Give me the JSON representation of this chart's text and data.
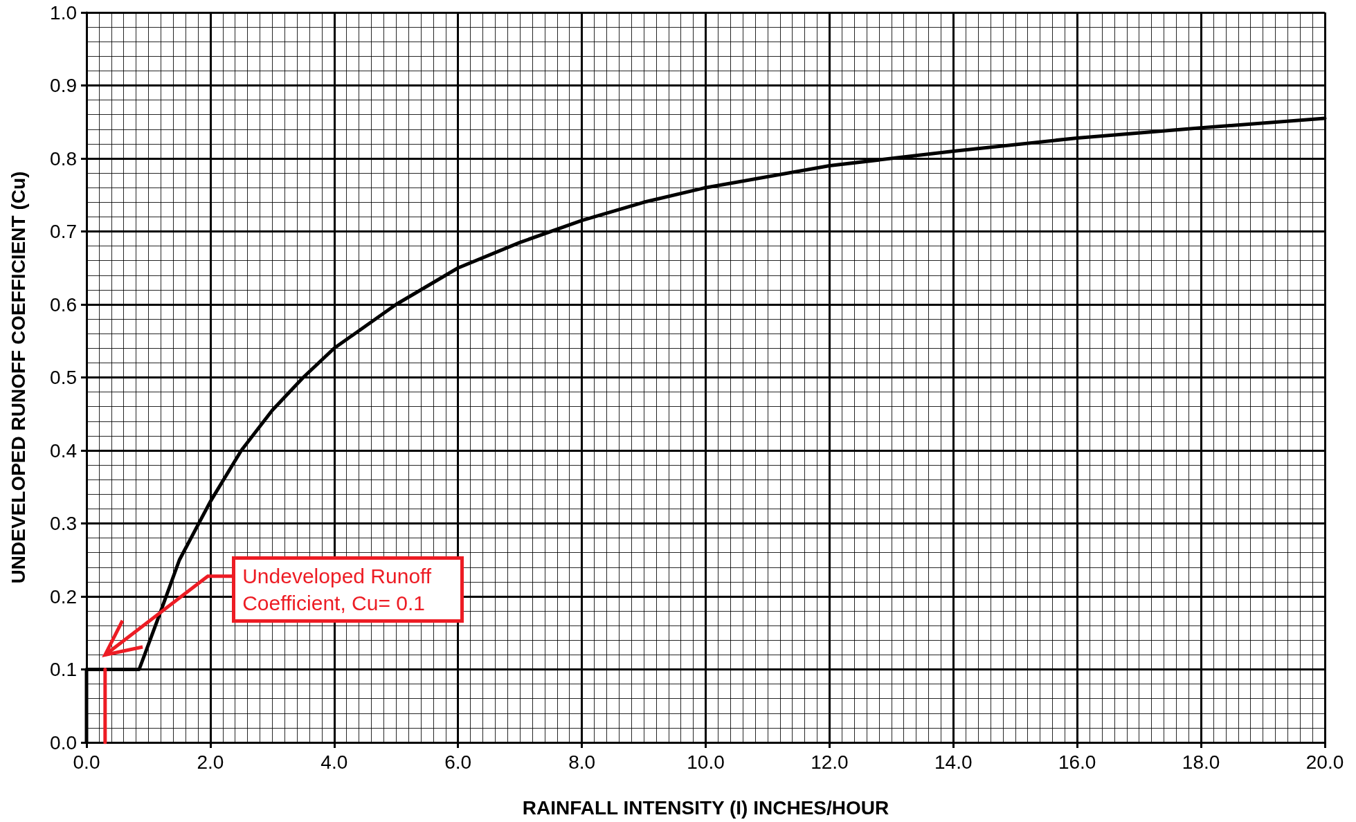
{
  "chart_data": {
    "type": "line",
    "xlabel": "RAINFALL INTENSITY (I) INCHES/HOUR",
    "ylabel": "UNDEVELOPED RUNOFF COEFFICIENT (Cu)",
    "series": [
      {
        "color": "#000000",
        "x": [
          0,
          0,
          0.85,
          1.2,
          1.5,
          2,
          2.5,
          3,
          3.5,
          4,
          5,
          6,
          7,
          8,
          9,
          10,
          12,
          14,
          16,
          18,
          20
        ],
        "values": [
          0,
          0.1,
          0.1,
          0.18,
          0.25,
          0.33,
          0.4,
          0.455,
          0.5,
          0.54,
          0.6,
          0.65,
          0.685,
          0.715,
          0.74,
          0.76,
          0.79,
          0.81,
          0.828,
          0.842,
          0.855
        ]
      },
      {
        "color": "#ed1c24",
        "x": [
          0.3,
          0.3
        ],
        "values": [
          0,
          0.1
        ]
      }
    ],
    "annotations": [
      "Undeveloped Runoff Coefficient, Cu= 0.1"
    ],
    "xlim": [
      0,
      20
    ],
    "xticks": [
      {
        "value": 0,
        "label": "0.0"
      },
      {
        "value": 2,
        "label": "2.0"
      },
      {
        "value": 4,
        "label": "4.0"
      },
      {
        "value": 6,
        "label": "6.0"
      },
      {
        "value": 8,
        "label": "8.0"
      },
      {
        "value": 10,
        "label": "10.0"
      },
      {
        "value": 12,
        "label": "12.0"
      },
      {
        "value": 14,
        "label": "14.0"
      },
      {
        "value": 16,
        "label": "16.0"
      },
      {
        "value": 18,
        "label": "18.0"
      },
      {
        "value": 20,
        "label": "20.0"
      }
    ],
    "ylim": [
      0,
      1
    ],
    "yticks": [
      {
        "value": 0,
        "label": "0.0"
      },
      {
        "value": 0.1,
        "label": "0.1"
      },
      {
        "value": 0.2,
        "label": "0.2"
      },
      {
        "value": 0.3,
        "label": "0.3"
      },
      {
        "value": 0.4,
        "label": "0.4"
      },
      {
        "value": 0.5,
        "label": "0.5"
      },
      {
        "value": 0.6,
        "label": "0.6"
      },
      {
        "value": 0.7,
        "label": "0.7"
      },
      {
        "value": 0.8,
        "label": "0.8"
      },
      {
        "value": 0.9,
        "label": "0.9"
      },
      {
        "value": 1,
        "label": "1.0"
      }
    ],
    "grid": true,
    "marker": "none",
    "line_style": "solid"
  }
}
